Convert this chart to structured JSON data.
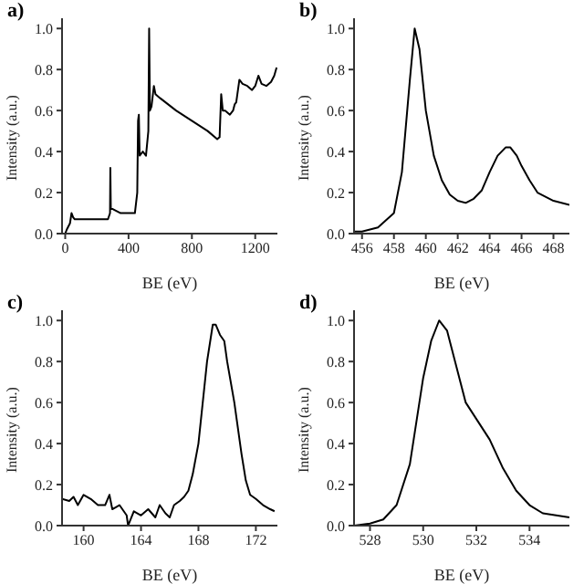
{
  "chart_data": [
    {
      "type": "line",
      "title": "a)",
      "xlabel": "BE (eV)",
      "ylabel": "Intensity (a.u.)",
      "xlim": [
        -20,
        1340
      ],
      "xticks": [
        0,
        400,
        800,
        1200
      ],
      "ylim": [
        0,
        1.05
      ],
      "yticks": [
        {
          "value": 0,
          "label": "0.0"
        },
        {
          "value": 0.2,
          "label": "0.2"
        },
        {
          "value": 0.4,
          "label": "0.4"
        },
        {
          "value": 0.6,
          "label": "0.6"
        },
        {
          "value": 0.8,
          "label": "0.8"
        },
        {
          "value": 1,
          "label": "1.0"
        }
      ],
      "grid": false,
      "legend": false,
      "marker": "none",
      "line_style": "solid",
      "series": [
        {
          "color": "#000000",
          "x": [
            0,
            10,
            30,
            40,
            50,
            60,
            100,
            200,
            270,
            283,
            285,
            288,
            300,
            350,
            400,
            440,
            455,
            460,
            465,
            470,
            490,
            510,
            525,
            530,
            535,
            545,
            560,
            570,
            600,
            700,
            800,
            900,
            960,
            975,
            985,
            995,
            1010,
            1040,
            1060,
            1070,
            1080,
            1100,
            1120,
            1150,
            1180,
            1200,
            1220,
            1240,
            1270,
            1300,
            1320,
            1335
          ],
          "values": [
            0,
            0.02,
            0.05,
            0.1,
            0.08,
            0.07,
            0.07,
            0.07,
            0.07,
            0.1,
            0.32,
            0.12,
            0.12,
            0.1,
            0.1,
            0.1,
            0.2,
            0.55,
            0.58,
            0.38,
            0.4,
            0.38,
            0.5,
            1.0,
            0.6,
            0.62,
            0.72,
            0.68,
            0.66,
            0.6,
            0.55,
            0.5,
            0.46,
            0.47,
            0.68,
            0.6,
            0.6,
            0.58,
            0.6,
            0.63,
            0.64,
            0.75,
            0.73,
            0.72,
            0.7,
            0.72,
            0.77,
            0.73,
            0.72,
            0.74,
            0.77,
            0.81
          ]
        }
      ]
    },
    {
      "type": "line",
      "title": "b)",
      "xlabel": "BE (eV)",
      "ylabel": "Intensity (a.u.)",
      "xlim": [
        455.5,
        469
      ],
      "xticks": [
        456,
        458,
        460,
        462,
        464,
        466,
        468
      ],
      "ylim": [
        0,
        1.05
      ],
      "yticks": [
        {
          "value": 0,
          "label": "0.0"
        },
        {
          "value": 0.2,
          "label": "0.2"
        },
        {
          "value": 0.4,
          "label": "0.4"
        },
        {
          "value": 0.6,
          "label": "0.6"
        },
        {
          "value": 0.8,
          "label": "0.8"
        },
        {
          "value": 1,
          "label": "1.0"
        }
      ],
      "grid": false,
      "legend": false,
      "marker": "none",
      "line_style": "solid",
      "series": [
        {
          "color": "#000000",
          "x": [
            455.5,
            456,
            457,
            458,
            458.5,
            459,
            459.3,
            459.6,
            460,
            460.5,
            461,
            461.5,
            462,
            462.5,
            463,
            463.5,
            464,
            464.5,
            465,
            465.3,
            465.7,
            466,
            466.5,
            467,
            467.5,
            468,
            469
          ],
          "values": [
            0.01,
            0.01,
            0.03,
            0.1,
            0.3,
            0.75,
            1.0,
            0.9,
            0.6,
            0.38,
            0.26,
            0.19,
            0.16,
            0.15,
            0.17,
            0.21,
            0.3,
            0.38,
            0.42,
            0.42,
            0.38,
            0.33,
            0.26,
            0.2,
            0.18,
            0.16,
            0.14
          ]
        }
      ]
    },
    {
      "type": "line",
      "title": "c)",
      "xlabel": "BE (eV)",
      "ylabel": "Intensity (a.u.)",
      "xlim": [
        158.5,
        173.5
      ],
      "xticks": [
        160,
        164,
        168,
        172
      ],
      "ylim": [
        0,
        1.05
      ],
      "yticks": [
        {
          "value": 0,
          "label": "0.0"
        },
        {
          "value": 0.2,
          "label": "0.2"
        },
        {
          "value": 0.4,
          "label": "0.4"
        },
        {
          "value": 0.6,
          "label": "0.6"
        },
        {
          "value": 0.8,
          "label": "0.8"
        },
        {
          "value": 1,
          "label": "1.0"
        }
      ],
      "grid": false,
      "legend": false,
      "marker": "none",
      "line_style": "solid",
      "series": [
        {
          "color": "#000000",
          "x": [
            158.5,
            159,
            159.3,
            159.6,
            160,
            160.5,
            161,
            161.5,
            161.8,
            162,
            162.5,
            163,
            163.1,
            163.5,
            164,
            164.5,
            165,
            165.3,
            165.7,
            166,
            166.3,
            166.7,
            167,
            167.3,
            167.6,
            168,
            168.3,
            168.6,
            169,
            169.2,
            169.5,
            169.8,
            170,
            170.5,
            171,
            171.3,
            171.6,
            172,
            172.5,
            173,
            173.3
          ],
          "values": [
            0.13,
            0.12,
            0.14,
            0.1,
            0.15,
            0.13,
            0.1,
            0.1,
            0.15,
            0.08,
            0.1,
            0.05,
            0.0,
            0.07,
            0.05,
            0.08,
            0.04,
            0.1,
            0.06,
            0.04,
            0.1,
            0.12,
            0.14,
            0.17,
            0.25,
            0.4,
            0.6,
            0.8,
            0.98,
            0.98,
            0.93,
            0.9,
            0.8,
            0.6,
            0.35,
            0.22,
            0.15,
            0.13,
            0.1,
            0.08,
            0.07
          ]
        }
      ]
    },
    {
      "type": "line",
      "title": "d)",
      "xlabel": "BE (eV)",
      "ylabel": "Intensity (a.u.)",
      "xlim": [
        527.4,
        535.5
      ],
      "xticks": [
        528,
        530,
        532,
        534
      ],
      "ylim": [
        0,
        1.05
      ],
      "yticks": [
        {
          "value": 0,
          "label": "0.0"
        },
        {
          "value": 0.2,
          "label": "0.2"
        },
        {
          "value": 0.4,
          "label": "0.4"
        },
        {
          "value": 0.6,
          "label": "0.6"
        },
        {
          "value": 0.8,
          "label": "0.8"
        },
        {
          "value": 1,
          "label": "1.0"
        }
      ],
      "grid": false,
      "legend": false,
      "marker": "none",
      "line_style": "solid",
      "series": [
        {
          "color": "#000000",
          "x": [
            527.4,
            528,
            528.5,
            529,
            529.5,
            530,
            530.3,
            530.6,
            530.9,
            531.2,
            531.6,
            532,
            532.5,
            533,
            533.5,
            534,
            534.5,
            535,
            535.5
          ],
          "values": [
            0,
            0.01,
            0.03,
            0.1,
            0.3,
            0.72,
            0.9,
            1.0,
            0.95,
            0.8,
            0.6,
            0.52,
            0.42,
            0.28,
            0.17,
            0.1,
            0.06,
            0.05,
            0.04
          ]
        }
      ]
    }
  ]
}
